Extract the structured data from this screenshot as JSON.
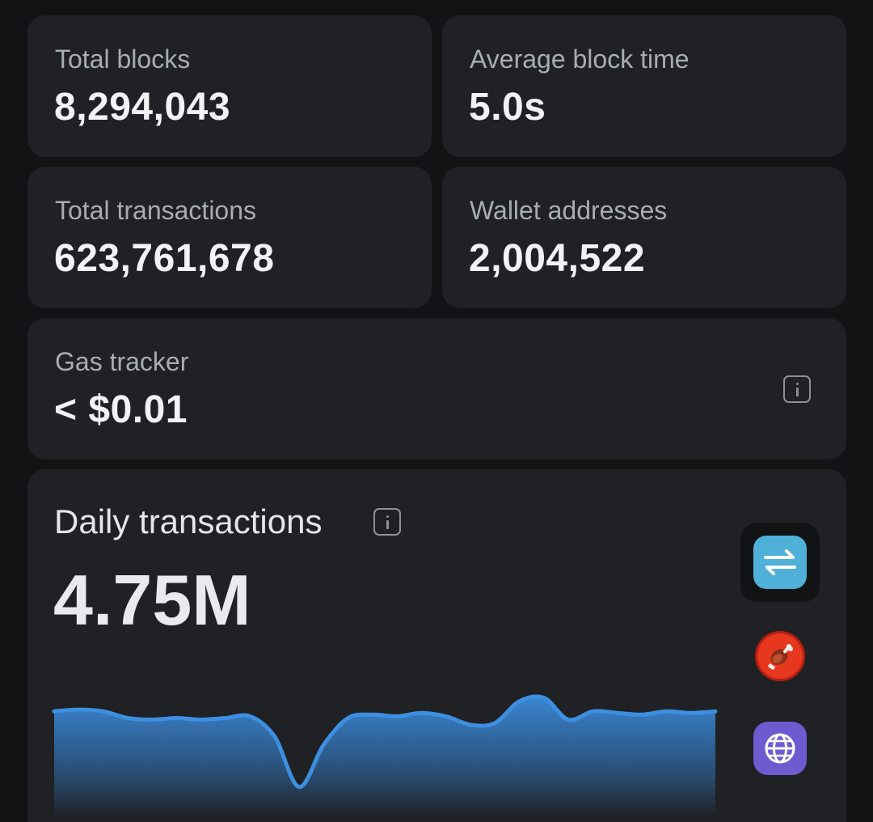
{
  "stats": [
    {
      "label": "Total blocks",
      "value": "8,294,043"
    },
    {
      "label": "Average block time",
      "value": "5.0s"
    },
    {
      "label": "Total transactions",
      "value": "623,761,678"
    },
    {
      "label": "Wallet addresses",
      "value": "2,004,522"
    }
  ],
  "gas": {
    "label": "Gas tracker",
    "value": "< $0.01"
  },
  "daily": {
    "title": "Daily transactions",
    "value": "4.75M"
  },
  "side_buttons": [
    {
      "icon": "swap-arrows-icon",
      "color": "#4fb0d8",
      "selected": true
    },
    {
      "icon": "meat-icon",
      "color": "#e8371f",
      "selected": false
    },
    {
      "icon": "globe-icon",
      "color": "#6f5bd0",
      "selected": false
    }
  ],
  "colors": {
    "background": "#121315",
    "card": "#202124",
    "line": "#3d8fe0"
  },
  "chart_data": {
    "type": "area",
    "title": "",
    "xlabel": "",
    "ylabel": "",
    "y": [
      4.7,
      4.71,
      4.7,
      4.66,
      4.65,
      4.66,
      4.65,
      4.66,
      4.67,
      4.55,
      4.25,
      4.5,
      4.66,
      4.68,
      4.67,
      4.69,
      4.67,
      4.62,
      4.63,
      4.76,
      4.78,
      4.65,
      4.7,
      4.69,
      4.68,
      4.7,
      4.69,
      4.7
    ],
    "grid": false,
    "legend": "none"
  }
}
